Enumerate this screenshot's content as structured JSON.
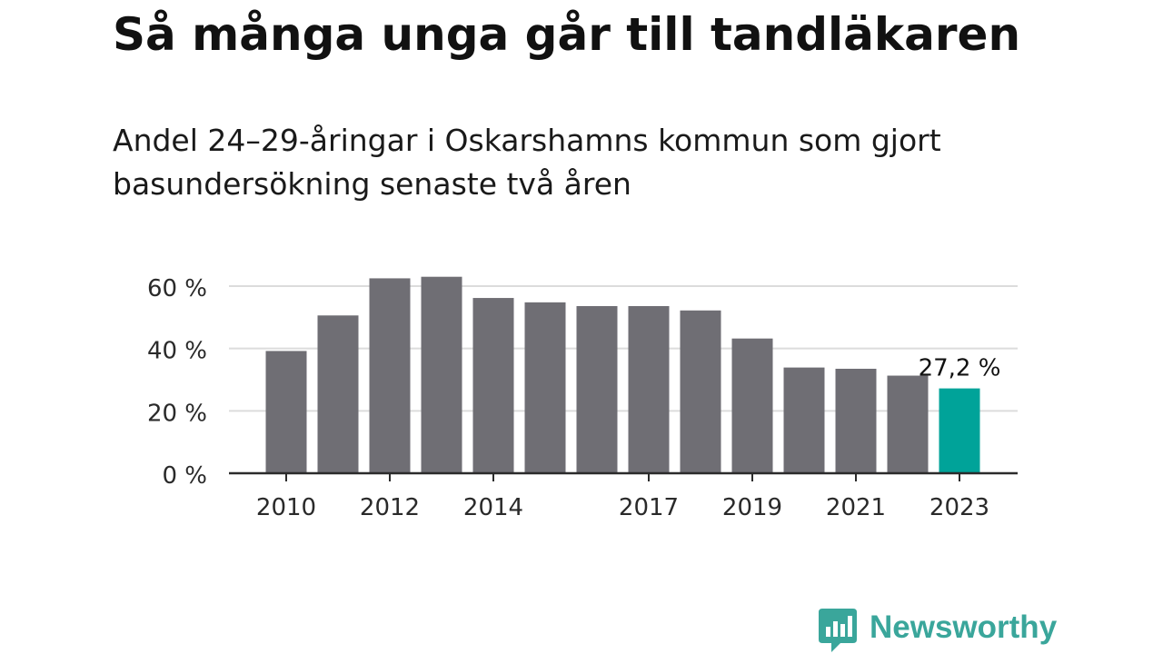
{
  "chart_data": {
    "type": "bar",
    "title": "Så många unga går till tandläkaren",
    "subtitle": "Andel 24–29-åringar i Oskarshamns kommun som gjort basundersökning senaste två åren",
    "categories": [
      "2010",
      "2011",
      "2012",
      "2013",
      "2014",
      "2015",
      "2016",
      "2017",
      "2018",
      "2019",
      "2020",
      "2021",
      "2022",
      "2023"
    ],
    "x_tick_labels": [
      "2010",
      "",
      "2012",
      "",
      "2014",
      "",
      "",
      "2017",
      "",
      "2019",
      "",
      "2021",
      "",
      "2023"
    ],
    "values": [
      39.2,
      50.6,
      62.5,
      63.0,
      56.2,
      54.8,
      53.6,
      53.6,
      52.2,
      43.2,
      33.9,
      33.5,
      31.3,
      27.2
    ],
    "ylim": [
      0,
      60
    ],
    "y_ticks": [
      0,
      20,
      40,
      60
    ],
    "y_tick_labels": [
      "0 %",
      "20 %",
      "40 %",
      "60 %"
    ],
    "annotation": {
      "index": 13,
      "text": "27,2 %"
    },
    "grid": true,
    "colors": {
      "bar": "#6f6e74",
      "highlight": "#00a399",
      "grid": "#dcdcdc",
      "axis": "#2b2b2b"
    }
  },
  "branding": {
    "name": "Newsworthy",
    "color": "#3aa69b",
    "icon": "newsworthy-chart-icon"
  }
}
